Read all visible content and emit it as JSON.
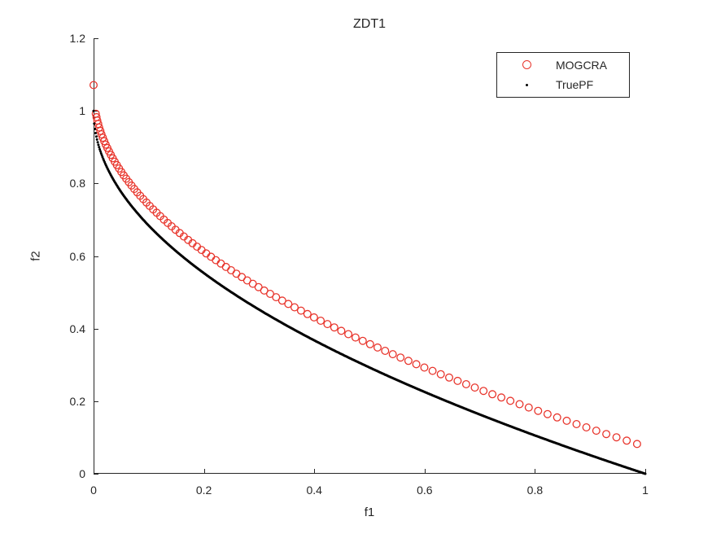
{
  "figure": {
    "background": "#ffffff",
    "axis_color": "#262626",
    "text_color": "#262626"
  },
  "chart_data": {
    "type": "scatter",
    "title": "ZDT1",
    "xlabel": "f1",
    "ylabel": "f2",
    "xlim": [
      0,
      1
    ],
    "ylim": [
      0,
      1.2
    ],
    "x_tick_values": [
      0,
      0.2,
      0.4,
      0.6,
      0.8,
      1
    ],
    "x_tick_labels": [
      "0",
      "0.2",
      "0.4",
      "0.6",
      "0.8",
      "1"
    ],
    "y_tick_values": [
      0,
      0.2,
      0.4,
      0.6,
      0.8,
      1,
      1.2
    ],
    "y_tick_labels": [
      "0",
      "0.2",
      "0.4",
      "0.6",
      "0.8",
      "1",
      "1.2"
    ],
    "grid": false,
    "legend_position": "top-right",
    "series": [
      {
        "name": "MOGCRA",
        "marker": "open-circle",
        "color": "#e8342b",
        "marker_size_px": 10,
        "extra_points": [
          [
            0.0,
            1.071
          ]
        ],
        "points_from": {
          "formula": "f2 = 1 - sqrt(f1) + 0.055 + 0.02*f1",
          "sampling": "f1 = t^2, t uniform in [t_start, t_end]",
          "t_start": 0.063,
          "t_end": 0.9925,
          "count": 99,
          "offset_const": 0.055,
          "offset_slope": 0.02
        }
      },
      {
        "name": "TruePF",
        "marker": "dot",
        "color": "#000000",
        "marker_size_px": 3,
        "points_from": {
          "formula": "f2 = 1 - sqrt(f1)",
          "sampling": "f1 uniform in [x_start, x_end]",
          "x_start": 0,
          "x_end": 1,
          "count": 800,
          "offset_const": 0,
          "offset_slope": 0
        }
      }
    ]
  }
}
